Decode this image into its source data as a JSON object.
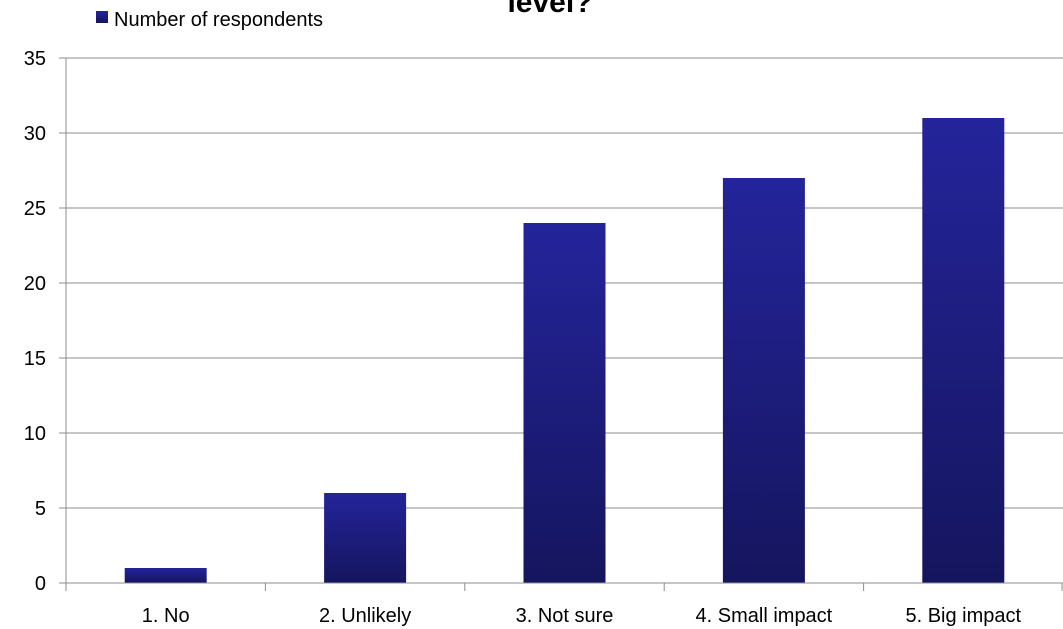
{
  "chart_data": {
    "type": "bar",
    "title": "level?",
    "categories": [
      "1. No",
      "2. Unlikely",
      "3. Not sure",
      "4. Small impact",
      "5. Big impact"
    ],
    "series": [
      {
        "name": "Number of respondents",
        "values": [
          1,
          6,
          24,
          27,
          31
        ]
      }
    ],
    "ylim": [
      0,
      35
    ],
    "yticks": [
      0,
      5,
      10,
      15,
      20,
      25,
      30,
      35
    ],
    "xlabel": "",
    "ylabel": "",
    "grid": true,
    "legend_position": "top-left",
    "colors": {
      "bar_top": "#24249b",
      "bar_bottom": "#15155e",
      "grid": "#8c8c8c",
      "axis": "#8c8c8c"
    }
  }
}
